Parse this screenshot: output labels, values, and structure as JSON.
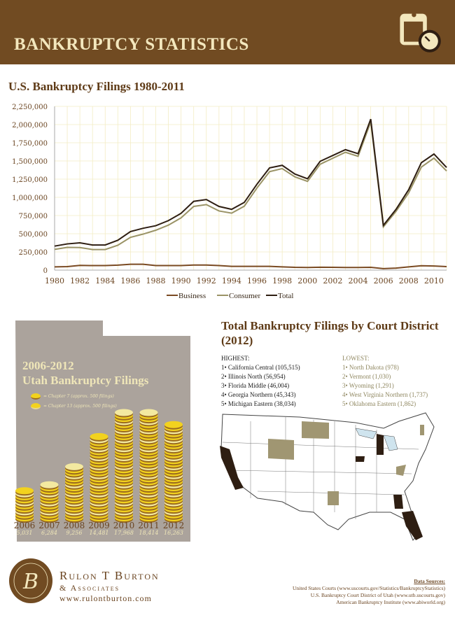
{
  "header": {
    "title": "BANKRUPTCY STATISTICS",
    "icon": "clipboard-timer-icon"
  },
  "colors": {
    "brand": "#714b22",
    "cream": "#f3e7bd",
    "business": "#7a4a22",
    "consumer": "#9a9366",
    "total": "#2e1e12",
    "utah_bg": "#aba39c",
    "coin": "#f2d21e",
    "highlight_high": "#2e1e12",
    "highlight_low": "#a09672"
  },
  "chart_data": {
    "type": "line",
    "title": "U.S. Bankruptcy Filings 1980-2011",
    "xlabel": "",
    "ylabel": "",
    "x": [
      1980,
      1981,
      1982,
      1983,
      1984,
      1985,
      1986,
      1987,
      1988,
      1989,
      1990,
      1991,
      1992,
      1993,
      1994,
      1995,
      1996,
      1997,
      1998,
      1999,
      2000,
      2001,
      2002,
      2003,
      2004,
      2005,
      2006,
      2007,
      2008,
      2009,
      2010,
      2011
    ],
    "xticks": [
      "1980",
      "1982",
      "1984",
      "1986",
      "1988",
      "1990",
      "1992",
      "1994",
      "1996",
      "1998",
      "2000",
      "2002",
      "2004",
      "2006",
      "2008",
      "2010"
    ],
    "yticks": [
      "0",
      "250,000",
      "500,000",
      "750,000",
      "1,000,000",
      "1,250,000",
      "1,500,000",
      "1,750,000",
      "2,000,000",
      "2,250,000"
    ],
    "ylim": [
      0,
      2250000
    ],
    "grid": true,
    "legend_position": "bottom",
    "series": [
      {
        "name": "Business",
        "values": [
          45000,
          48000,
          65000,
          62000,
          62000,
          68000,
          80000,
          80000,
          62000,
          62000,
          62000,
          70000,
          70000,
          62000,
          52000,
          52000,
          52000,
          52000,
          45000,
          38000,
          36000,
          40000,
          38000,
          36000,
          36000,
          38000,
          20000,
          28000,
          44000,
          60000,
          56000,
          48000
        ]
      },
      {
        "name": "Consumer",
        "values": [
          285000,
          312000,
          310000,
          283000,
          283000,
          342000,
          450000,
          495000,
          548000,
          618000,
          718000,
          875000,
          900000,
          813000,
          783000,
          878000,
          1128000,
          1353000,
          1395000,
          1282000,
          1219000,
          1455000,
          1537000,
          1619000,
          1564000,
          2037000,
          595000,
          807000,
          1061000,
          1415000,
          1539000,
          1362000
        ]
      },
      {
        "name": "Total",
        "values": [
          330000,
          360000,
          375000,
          345000,
          345000,
          410000,
          530000,
          575000,
          610000,
          680000,
          780000,
          945000,
          970000,
          875000,
          835000,
          930000,
          1180000,
          1405000,
          1440000,
          1320000,
          1255000,
          1495000,
          1575000,
          1655000,
          1600000,
          2075000,
          615000,
          835000,
          1105000,
          1475000,
          1595000,
          1410000
        ]
      }
    ]
  },
  "utah": {
    "title_line1": "2006-2012",
    "title_line2": "Utah Bankruptcy Filings",
    "legend": [
      "= Chapter 7 (approx. 500 filings)",
      "= Chapter 13 (approx. 500 filings)"
    ],
    "years": [
      {
        "year": "2006",
        "value": "5,031",
        "n": 5031
      },
      {
        "year": "2007",
        "value": "6,284",
        "n": 6284
      },
      {
        "year": "2008",
        "value": "9,256",
        "n": 9256
      },
      {
        "year": "2009",
        "value": "14,481",
        "n": 14481
      },
      {
        "year": "2010",
        "value": "17,968",
        "n": 17968
      },
      {
        "year": "2011",
        "value": "18,414",
        "n": 18414
      },
      {
        "year": "2012",
        "value": "16,263",
        "n": 16263
      }
    ]
  },
  "districts": {
    "title": "Total Bankruptcy Filings by Court District (2012)",
    "highest_label": "HIGHEST:",
    "lowest_label": "LOWEST:",
    "highest": [
      "1• California Central (105,515)",
      "2• Illinois North (56,954)",
      "3• Florida Middle (46,004)",
      "4• Georgia Northern (45,343)",
      "5• Michigan Eastern (38,034)"
    ],
    "lowest": [
      "1• North Dakota (978)",
      "2• Vermont (1,030)",
      "3• Wyoming (1,291)",
      "4• West Virginia Northern (1,737)",
      "5• Oklahoma Eastern (1,862)"
    ]
  },
  "footer": {
    "logo_letter": "B",
    "firm_name": "Rulon T Burton",
    "firm_sub": "& Associates",
    "website": "www.rulontburton.com",
    "sources_title": "Data Sources:",
    "sources": [
      "United States Courts (www.uscourts.gov/Statistics/BankruptcyStatistics)",
      "U.S. Bankruptcy Court District of Utah (www.utb.uscourts.gov)",
      "American Bankruptcy Institute (www.abiworld.org)"
    ]
  }
}
